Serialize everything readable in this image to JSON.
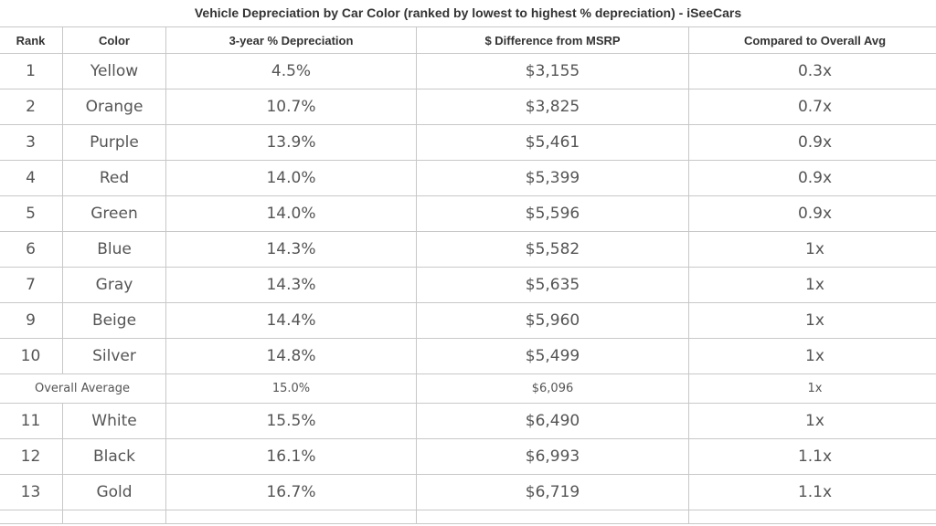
{
  "chart_data": {
    "type": "table",
    "title": "Vehicle Depreciation by Car Color (ranked by lowest to highest % depreciation) - iSeeCars",
    "columns": [
      "Rank",
      "Color",
      "3-year % Depreciation",
      "$ Difference from MSRP",
      "Compared to Overall Avg"
    ],
    "rows": [
      {
        "rank": "1",
        "color": "Yellow",
        "depreciation": "4.5%",
        "difference": "$3,155",
        "compared": "0.3x"
      },
      {
        "rank": "2",
        "color": "Orange",
        "depreciation": "10.7%",
        "difference": "$3,825",
        "compared": "0.7x"
      },
      {
        "rank": "3",
        "color": "Purple",
        "depreciation": "13.9%",
        "difference": "$5,461",
        "compared": "0.9x"
      },
      {
        "rank": "4",
        "color": "Red",
        "depreciation": "14.0%",
        "difference": "$5,399",
        "compared": "0.9x"
      },
      {
        "rank": "5",
        "color": "Green",
        "depreciation": "14.0%",
        "difference": "$5,596",
        "compared": "0.9x"
      },
      {
        "rank": "6",
        "color": "Blue",
        "depreciation": "14.3%",
        "difference": "$5,582",
        "compared": "1x"
      },
      {
        "rank": "7",
        "color": "Gray",
        "depreciation": "14.3%",
        "difference": "$5,635",
        "compared": "1x"
      },
      {
        "rank": "9",
        "color": "Beige",
        "depreciation": "14.4%",
        "difference": "$5,960",
        "compared": "1x"
      },
      {
        "rank": "10",
        "color": "Silver",
        "depreciation": "14.8%",
        "difference": "$5,499",
        "compared": "1x"
      }
    ],
    "overall_average": {
      "label": "Overall Average",
      "depreciation": "15.0%",
      "difference": "$6,096",
      "compared": "1x"
    },
    "rows_after": [
      {
        "rank": "11",
        "color": "White",
        "depreciation": "15.5%",
        "difference": "$6,490",
        "compared": "1x"
      },
      {
        "rank": "12",
        "color": "Black",
        "depreciation": "16.1%",
        "difference": "$6,993",
        "compared": "1.1x"
      },
      {
        "rank": "13",
        "color": "Gold",
        "depreciation": "16.7%",
        "difference": "$6,719",
        "compared": "1.1x"
      }
    ]
  }
}
